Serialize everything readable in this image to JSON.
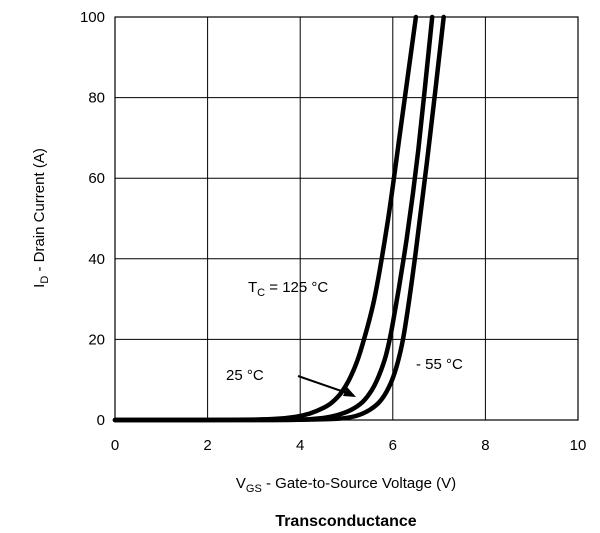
{
  "chart_data": {
    "type": "line",
    "title": "Transconductance",
    "xlabel": {
      "main": "V",
      "sub": "GS",
      "rest": " - Gate-to-Source Voltage (V)"
    },
    "ylabel": {
      "main": "I",
      "sub": "D",
      "rest": " - Drain Current (A)"
    },
    "xlim": [
      0,
      10
    ],
    "ylim": [
      0,
      100
    ],
    "xticks": [
      0,
      2,
      4,
      6,
      8,
      10
    ],
    "yticks": [
      0,
      20,
      40,
      60,
      80,
      100
    ],
    "grid": true,
    "series": [
      {
        "x": [
          0,
          2,
          3,
          3.5,
          3.9,
          4.2,
          4.5,
          4.7,
          4.9,
          5.1,
          5.3,
          5.6,
          5.9,
          6.2,
          6.5
        ],
        "y": [
          0,
          0,
          0.1,
          0.3,
          0.8,
          1.6,
          3,
          4.5,
          7,
          11,
          17,
          30,
          50,
          75,
          100
        ]
      },
      {
        "x": [
          0,
          3,
          4,
          4.5,
          4.8,
          5.1,
          5.35,
          5.55,
          5.7,
          5.85,
          6.0,
          6.3,
          6.55,
          6.85
        ],
        "y": [
          0,
          0,
          0.1,
          0.5,
          1.2,
          2.5,
          4.5,
          7.5,
          11,
          16,
          24,
          45,
          67,
          100
        ]
      },
      {
        "x": [
          0,
          3,
          4,
          4.8,
          5.2,
          5.5,
          5.75,
          5.95,
          6.1,
          6.25,
          6.5,
          6.8,
          7.1
        ],
        "y": [
          0,
          0,
          0.05,
          0.3,
          1,
          2.5,
          5,
          9,
          14,
          22,
          42,
          70,
          100
        ]
      }
    ],
    "annotations": [
      {
        "main": "T",
        "sub": "C",
        "rest": " = 125 °C"
      },
      {
        "text": "25 °C"
      },
      {
        "text": "- 55 °C"
      }
    ]
  }
}
